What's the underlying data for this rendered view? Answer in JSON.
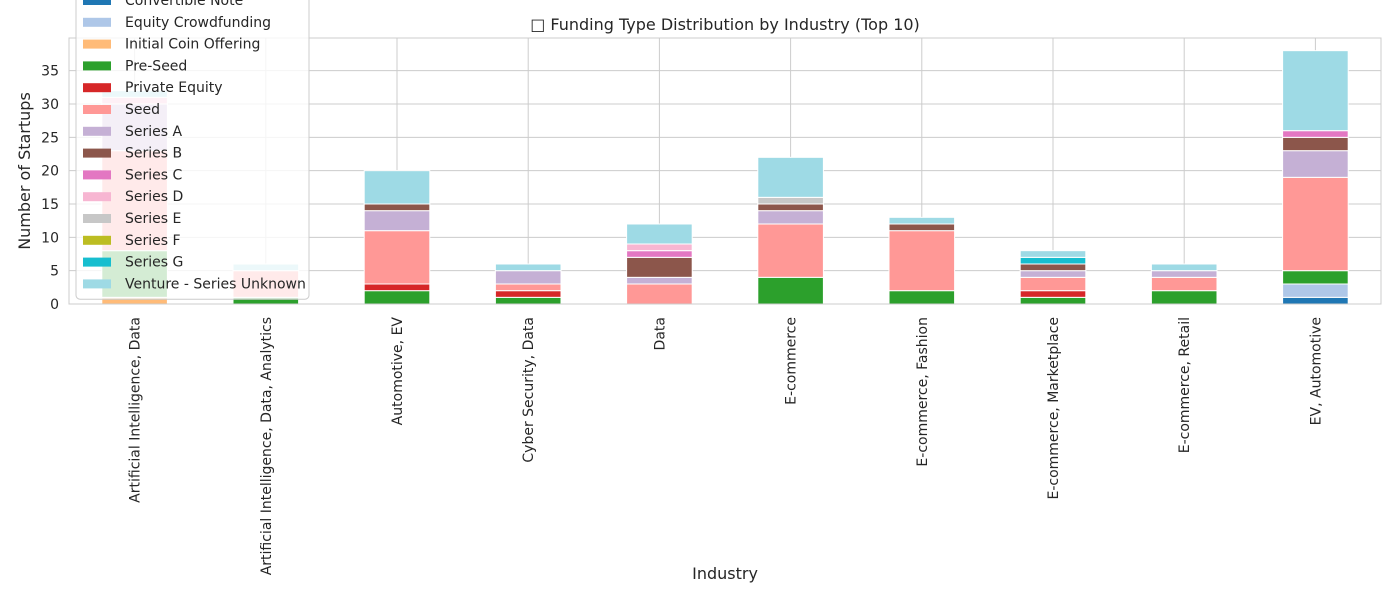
{
  "chart_data": {
    "type": "bar",
    "stacked": true,
    "title": "□ Funding Type Distribution by Industry (Top 10)",
    "xlabel": "Industry",
    "ylabel": "Number of Startups",
    "ylim": [
      0,
      39.9
    ],
    "yticks": [
      0,
      5,
      10,
      15,
      20,
      25,
      30,
      35
    ],
    "grid": true,
    "legend_position": "top-left",
    "categories": [
      "Artificial Intelligence, Data",
      "Artificial Intelligence, Data, Analytics",
      "Automotive, EV",
      "Cyber Security, Data",
      "Data",
      "E-commerce",
      "E-commerce, Fashion",
      "E-commerce, Marketplace",
      "E-commerce, Retail",
      "EV, Automotive"
    ],
    "series": [
      {
        "name": "Convertible Note",
        "color": "#1f77b4",
        "values": [
          0,
          0,
          0,
          0,
          0,
          0,
          0,
          0,
          0,
          1
        ]
      },
      {
        "name": "Equity Crowdfunding",
        "color": "#aec7e8",
        "values": [
          0,
          0,
          0,
          0,
          0,
          0,
          0,
          0,
          0,
          2
        ]
      },
      {
        "name": "Initial Coin Offering",
        "color": "#ffbb78",
        "values": [
          1,
          0,
          0,
          0,
          0,
          0,
          0,
          0,
          0,
          0
        ]
      },
      {
        "name": "Pre-Seed",
        "color": "#2ca02c",
        "values": [
          7,
          1,
          2,
          1,
          0,
          4,
          2,
          1,
          2,
          2
        ]
      },
      {
        "name": "Private Equity",
        "color": "#d62728",
        "values": [
          0,
          0,
          1,
          1,
          0,
          0,
          0,
          1,
          0,
          0
        ]
      },
      {
        "name": "Seed",
        "color": "#ff9896",
        "values": [
          15,
          4,
          8,
          1,
          3,
          8,
          9,
          2,
          2,
          14
        ]
      },
      {
        "name": "Series A",
        "color": "#c5b0d5",
        "values": [
          7,
          0,
          3,
          2,
          1,
          2,
          0,
          1,
          1,
          4
        ]
      },
      {
        "name": "Series B",
        "color": "#8c564b",
        "values": [
          0,
          0,
          1,
          0,
          3,
          1,
          1,
          1,
          0,
          2
        ]
      },
      {
        "name": "Series C",
        "color": "#e377c2",
        "values": [
          0,
          0,
          0,
          0,
          1,
          0,
          0,
          0,
          0,
          1
        ]
      },
      {
        "name": "Series D",
        "color": "#f7b6d2",
        "values": [
          1,
          0,
          0,
          0,
          1,
          0,
          0,
          0,
          0,
          0
        ]
      },
      {
        "name": "Series E",
        "color": "#c7c7c7",
        "values": [
          0,
          0,
          0,
          0,
          0,
          1,
          0,
          0,
          0,
          0
        ]
      },
      {
        "name": "Series F",
        "color": "#bcbd22",
        "values": [
          0,
          0,
          0,
          0,
          0,
          0,
          0,
          0,
          0,
          0
        ]
      },
      {
        "name": "Series G",
        "color": "#17becf",
        "values": [
          0,
          0,
          0,
          0,
          0,
          0,
          0,
          1,
          0,
          0
        ]
      },
      {
        "name": "Venture - Series Unknown",
        "color": "#9edae5",
        "values": [
          1,
          1,
          5,
          1,
          3,
          6,
          1,
          1,
          1,
          12
        ]
      }
    ]
  }
}
